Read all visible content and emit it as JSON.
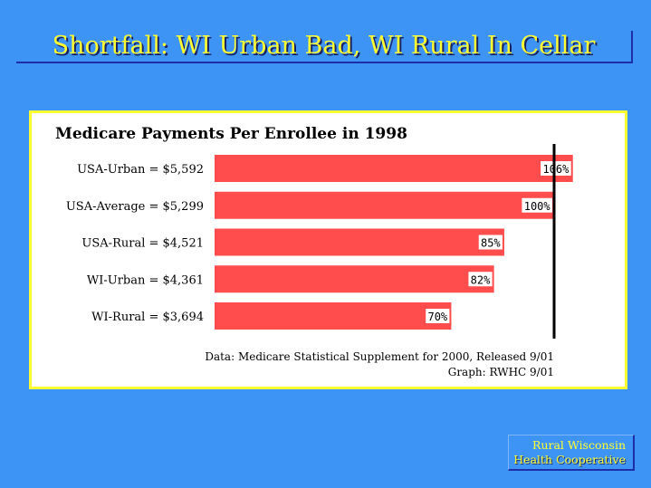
{
  "slide": {
    "title": "Shortfall: WI Urban Bad, WI Rural In Cellar"
  },
  "chart_data": {
    "type": "bar",
    "orientation": "horizontal",
    "title": "Medicare Payments Per Enrollee in 1998",
    "categories": [
      "USA-Urban = $5,592",
      "USA-Average = $5,299",
      "USA-Rural = $4,521",
      "WI-Urban = $4,361",
      "WI-Rural = $3,694"
    ],
    "values": [
      5592,
      5299,
      4521,
      4361,
      3694
    ],
    "data_labels": [
      "106%",
      "100%",
      "85%",
      "82%",
      "70%"
    ],
    "reference_line": 5299,
    "bar_color": "#ff4c4c",
    "notes": [
      "Data: Medicare Statistical Supplement for 2000, Released 9/01",
      "Graph: RWHC 9/01"
    ]
  },
  "logo": {
    "line1": "Rural Wisconsin",
    "line2": "Health Cooperative"
  },
  "colors": {
    "background": "#3d94f5",
    "title": "#ffff33",
    "panel_border": "#ffff33"
  }
}
